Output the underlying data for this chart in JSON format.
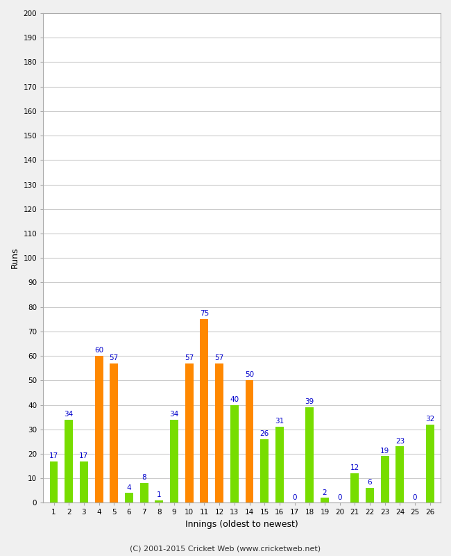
{
  "xlabel": "Innings (oldest to newest)",
  "ylabel": "Runs",
  "innings": [
    1,
    2,
    3,
    4,
    5,
    6,
    7,
    8,
    9,
    10,
    11,
    12,
    13,
    14,
    15,
    16,
    17,
    18,
    19,
    20,
    21,
    22,
    23,
    24,
    25,
    26
  ],
  "values": [
    17,
    34,
    17,
    60,
    57,
    4,
    8,
    1,
    34,
    57,
    75,
    57,
    40,
    50,
    26,
    31,
    0,
    39,
    2,
    0,
    12,
    6,
    19,
    23,
    0,
    32
  ],
  "colors": [
    "#77dd00",
    "#77dd00",
    "#77dd00",
    "#ff8800",
    "#ff8800",
    "#77dd00",
    "#77dd00",
    "#77dd00",
    "#77dd00",
    "#ff8800",
    "#ff8800",
    "#ff8800",
    "#77dd00",
    "#ff8800",
    "#77dd00",
    "#77dd00",
    "#77dd00",
    "#77dd00",
    "#77dd00",
    "#77dd00",
    "#77dd00",
    "#77dd00",
    "#77dd00",
    "#77dd00",
    "#77dd00",
    "#77dd00"
  ],
  "label_color": "#0000cc",
  "ylim": [
    0,
    200
  ],
  "yticks": [
    0,
    10,
    20,
    30,
    40,
    50,
    60,
    70,
    80,
    90,
    100,
    110,
    120,
    130,
    140,
    150,
    160,
    170,
    180,
    190,
    200
  ],
  "bg_color": "#f0f0f0",
  "plot_bg_color": "#ffffff",
  "grid_color": "#cccccc",
  "footer": "(C) 2001-2015 Cricket Web (www.cricketweb.net)"
}
